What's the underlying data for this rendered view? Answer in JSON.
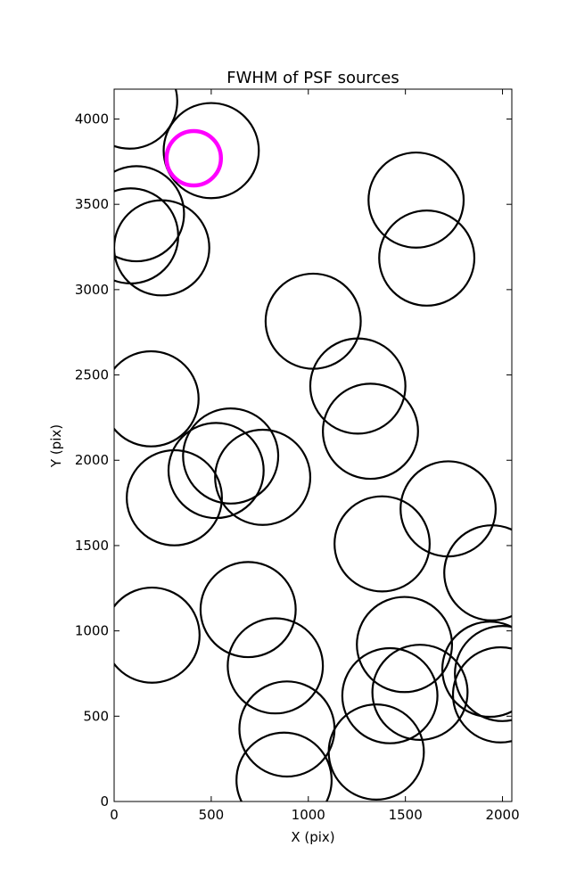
{
  "chart_data": {
    "type": "scatter",
    "title": "FWHM of PSF sources",
    "xlabel": "X (pix)",
    "ylabel": "Y (pix)",
    "xlim": [
      0,
      2048
    ],
    "ylim": [
      0,
      4175
    ],
    "xticks": [
      0,
      500,
      1000,
      1500,
      2000
    ],
    "yticks": [
      0,
      500,
      1000,
      1500,
      2000,
      2500,
      3000,
      3500,
      4000
    ],
    "grid": false,
    "legend": "none",
    "radius_units": "pix",
    "series": [
      {
        "color": "#000000",
        "points": [
          {
            "x": 80,
            "y": 4105,
            "r": 245
          },
          {
            "x": 500,
            "y": 3815,
            "r": 245
          },
          {
            "x": 115,
            "y": 3445,
            "r": 245
          },
          {
            "x": 85,
            "y": 3315,
            "r": 245
          },
          {
            "x": 245,
            "y": 3245,
            "r": 245
          },
          {
            "x": 1555,
            "y": 3525,
            "r": 245
          },
          {
            "x": 1610,
            "y": 3185,
            "r": 245
          },
          {
            "x": 1025,
            "y": 2815,
            "r": 245
          },
          {
            "x": 1255,
            "y": 2435,
            "r": 245
          },
          {
            "x": 1320,
            "y": 2170,
            "r": 245
          },
          {
            "x": 190,
            "y": 2360,
            "r": 245
          },
          {
            "x": 600,
            "y": 2025,
            "r": 245
          },
          {
            "x": 525,
            "y": 1940,
            "r": 245
          },
          {
            "x": 765,
            "y": 1900,
            "r": 245
          },
          {
            "x": 310,
            "y": 1780,
            "r": 245
          },
          {
            "x": 1720,
            "y": 1715,
            "r": 245
          },
          {
            "x": 1380,
            "y": 1510,
            "r": 245
          },
          {
            "x": 1945,
            "y": 1340,
            "r": 245
          },
          {
            "x": 690,
            "y": 1125,
            "r": 245
          },
          {
            "x": 195,
            "y": 975,
            "r": 245
          },
          {
            "x": 830,
            "y": 795,
            "r": 245
          },
          {
            "x": 1495,
            "y": 920,
            "r": 245
          },
          {
            "x": 1575,
            "y": 640,
            "r": 245
          },
          {
            "x": 1420,
            "y": 620,
            "r": 245
          },
          {
            "x": 1935,
            "y": 775,
            "r": 245
          },
          {
            "x": 2000,
            "y": 750,
            "r": 245
          },
          {
            "x": 1990,
            "y": 625,
            "r": 245
          },
          {
            "x": 890,
            "y": 425,
            "r": 245
          },
          {
            "x": 1350,
            "y": 290,
            "r": 245
          },
          {
            "x": 875,
            "y": 125,
            "r": 245
          }
        ]
      },
      {
        "color": "#ff00ff",
        "points": [
          {
            "x": 410,
            "y": 3770,
            "r": 140
          }
        ]
      }
    ]
  }
}
